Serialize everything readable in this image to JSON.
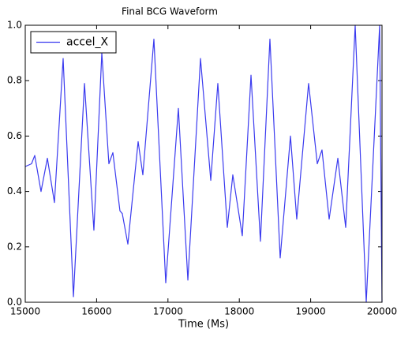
{
  "chart_data": {
    "type": "line",
    "title": "Final BCG Waveform",
    "xlabel": "Time (Ms)",
    "x": [
      15000,
      15088,
      15133,
      15221,
      15310,
      15409,
      15531,
      15675,
      15830,
      15962,
      16073,
      16172,
      16228,
      16327,
      16360,
      16438,
      16582,
      16648,
      16803,
      16969,
      17146,
      17279,
      17456,
      17600,
      17699,
      17832,
      17909,
      18042,
      18164,
      18296,
      18429,
      18573,
      18717,
      18805,
      18971,
      19093,
      19159,
      19259,
      19381,
      19491,
      19624,
      19779,
      19967,
      20000
    ],
    "series": [
      {
        "name": "accel_X",
        "color": "#3b3bef",
        "values": [
          0.49,
          0.5,
          0.53,
          0.4,
          0.52,
          0.36,
          0.88,
          0.02,
          0.79,
          0.26,
          0.9,
          0.5,
          0.54,
          0.33,
          0.32,
          0.21,
          0.58,
          0.46,
          0.95,
          0.07,
          0.7,
          0.08,
          0.88,
          0.44,
          0.79,
          0.27,
          0.46,
          0.24,
          0.82,
          0.22,
          0.95,
          0.16,
          0.6,
          0.3,
          0.79,
          0.5,
          0.55,
          0.3,
          0.52,
          0.27,
          1.0,
          0.0,
          1.0,
          0.0
        ]
      }
    ],
    "xlim": [
      15000,
      20000
    ],
    "xticks": [
      15000,
      16000,
      17000,
      18000,
      19000,
      20000
    ],
    "ylim": [
      0,
      1
    ],
    "yticks": [
      {
        "value": 0,
        "label": "0.0"
      },
      {
        "value": 0.2,
        "label": "0.2"
      },
      {
        "value": 0.4,
        "label": "0.4"
      },
      {
        "value": 0.6,
        "label": "0.6"
      },
      {
        "value": 0.8,
        "label": "0.8"
      },
      {
        "value": 1,
        "label": "1.0"
      }
    ],
    "legend": "upper left"
  }
}
